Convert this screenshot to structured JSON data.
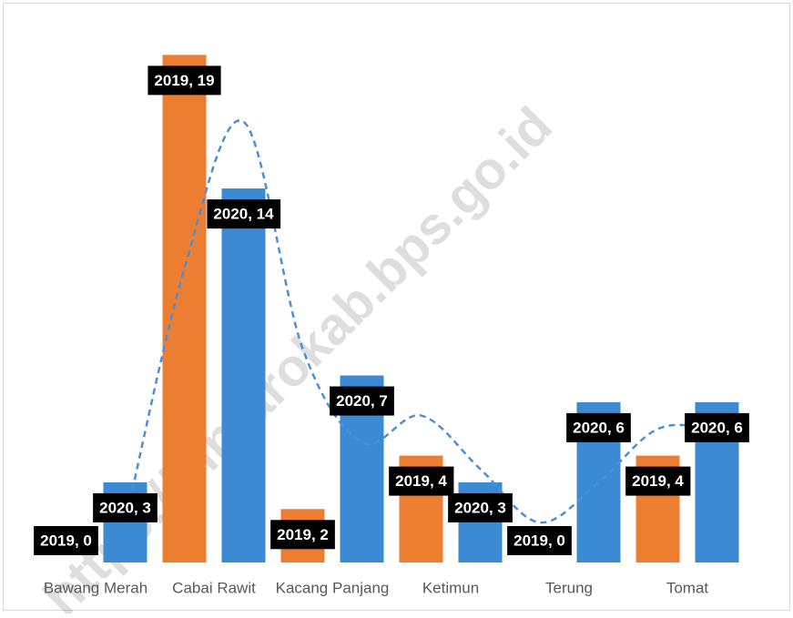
{
  "chart_data": {
    "type": "bar",
    "categories": [
      "Bawang Merah",
      "Cabai Rawit",
      "Kacang Panjang",
      "Ketimun",
      "Terung",
      "Tomat"
    ],
    "series": [
      {
        "name": "2019",
        "color": "#ed7d31",
        "values": [
          0,
          19,
          2,
          4,
          0,
          4
        ],
        "value_labels": [
          "2019, 0",
          "2019, 19",
          "2019, 2",
          "2019, 4",
          "2019, 0",
          "2019, 4"
        ]
      },
      {
        "name": "2020",
        "color": "#3c8ad4",
        "values": [
          3,
          14,
          7,
          3,
          6,
          6
        ],
        "value_labels": [
          "2020, 3",
          "2020, 14",
          "2020, 7",
          "2020, 3",
          "2020, 6",
          "2020, 6"
        ]
      }
    ],
    "trend": {
      "color": "#4a90d9",
      "values": [
        null,
        1.5,
        11,
        16.5,
        8,
        4.5,
        5.5,
        3.5,
        1.5,
        3,
        5,
        5
      ]
    },
    "ylim": [
      0,
      20
    ],
    "watermark": "https://sintarokab.bps.go.id"
  }
}
